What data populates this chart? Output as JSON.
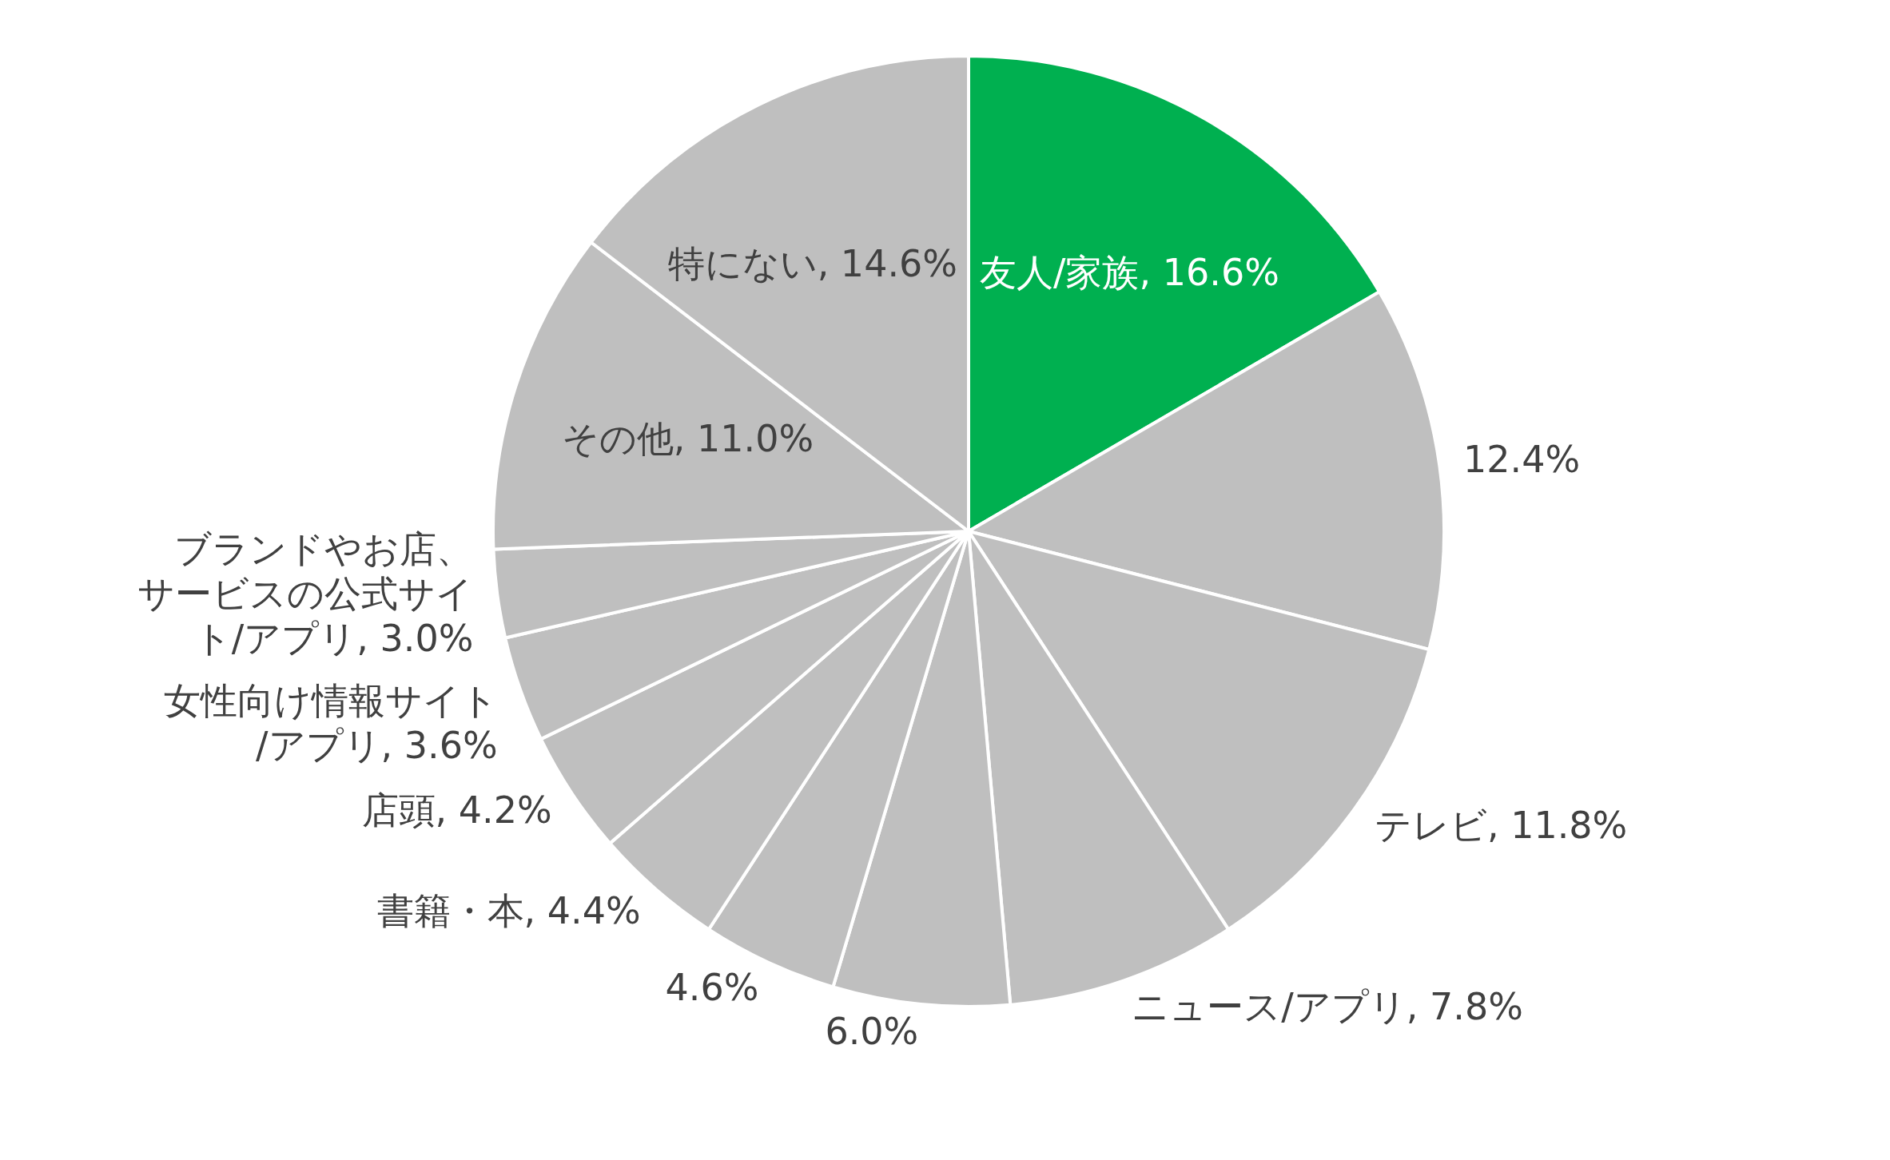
{
  "chart_data": {
    "type": "pie",
    "categories": [
      "友人/家族",
      null,
      "テレビ",
      "ニュース/アプリ",
      null,
      null,
      "書籍・本",
      "店頭",
      "女性向け情報サイト/アプリ",
      "ブランドやお店、サービスの公式サイト/アプリ",
      "その他",
      "特にない"
    ],
    "values": [
      16.6,
      12.4,
      11.8,
      7.8,
      6.0,
      4.6,
      4.4,
      4.2,
      3.6,
      3.0,
      11.0,
      14.6
    ],
    "value_labels": [
      "16.6%",
      "12.4%",
      "11.8%",
      "7.8%",
      "6.0%",
      "4.6%",
      "4.4%",
      "4.2%",
      "3.6%",
      "3.0%",
      "11.0%",
      "14.6%"
    ],
    "colors": [
      "#00b050",
      "#bfbfbf",
      "#bfbfbf",
      "#bfbfbf",
      "#bfbfbf",
      "#bfbfbf",
      "#bfbfbf",
      "#bfbfbf",
      "#bfbfbf",
      "#bfbfbf",
      "#bfbfbf",
      "#bfbfbf"
    ],
    "data_labels": true,
    "legend": false
  }
}
